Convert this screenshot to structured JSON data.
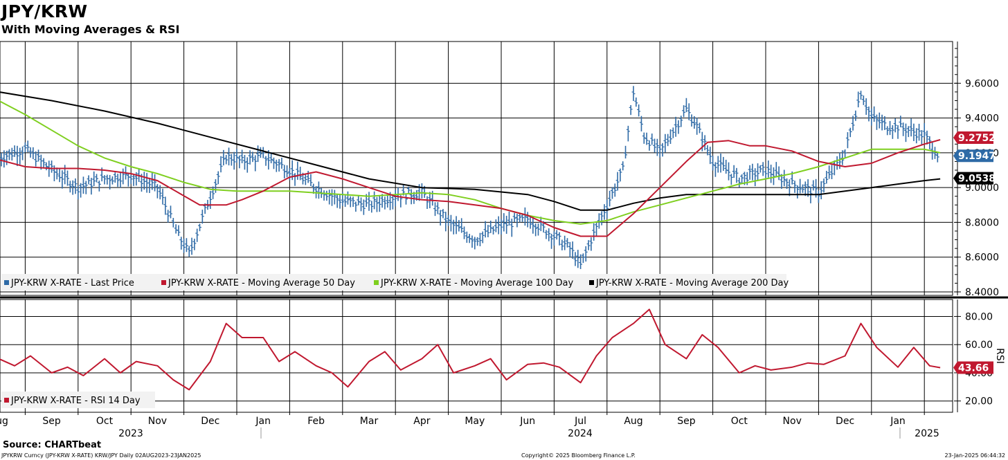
{
  "title": "JPY/KRW",
  "subtitle": "With Moving Averages & RSI",
  "source": "Source: CHARTbeat",
  "footer": {
    "left": "JPYKRW Curncy (JPY-KRW X-RATE) KRW/JPY  Daily 02AUG2023-23JAN2025",
    "center": "Copyright© 2025 Bloomberg Finance L.P.",
    "right": "23-Jan-2025 06:44:32"
  },
  "chart_data": [
    {
      "type": "line",
      "panel": "price",
      "ylim": [
        8.38,
        9.84
      ],
      "yticks": [
        "9.6000",
        "9.4000",
        "9.2000",
        "9.0000",
        "8.8000",
        "8.6000",
        "8.4000"
      ],
      "ytick_values": [
        9.6,
        9.4,
        9.2,
        9.0,
        8.8,
        8.6,
        8.4
      ],
      "x_months": [
        "Aug",
        "Sep",
        "Oct",
        "Nov",
        "Dec",
        "Jan",
        "Feb",
        "Mar",
        "Apr",
        "May",
        "Jun",
        "Jul",
        "Aug",
        "Sep",
        "Oct",
        "Nov",
        "Dec",
        "Jan"
      ],
      "x_years": [
        "2023",
        "2024",
        "2025"
      ],
      "x_range_months": [
        0,
        18
      ],
      "legend": [
        {
          "label": "JPY-KRW X-RATE - Last Price",
          "color": "#2e6aa6"
        },
        {
          "label": "JPY-KRW X-RATE - Moving Average 50 Day",
          "color": "#c0182f"
        },
        {
          "label": "JPY-KRW X-RATE - Moving Average 100 Day",
          "color": "#7fcf1f"
        },
        {
          "label": "JPY-KRW X-RATE - Moving Average 200 Day",
          "color": "#000000"
        }
      ],
      "series": [
        {
          "name": "Last Price",
          "style": "bars",
          "color": "#2e6aa6",
          "x": [
            0.0,
            0.5,
            1.0,
            1.5,
            2.0,
            2.5,
            3.0,
            3.4,
            3.6,
            3.8,
            4.0,
            4.3,
            4.6,
            5.0,
            5.5,
            6.0,
            6.5,
            7.0,
            7.5,
            8.0,
            8.5,
            9.0,
            9.5,
            10.0,
            10.5,
            10.8,
            11.0,
            11.2,
            11.5,
            11.8,
            12.0,
            12.2,
            12.5,
            13.0,
            13.2,
            13.5,
            14.0,
            14.5,
            15.0,
            15.5,
            16.0,
            16.3,
            16.5,
            16.8,
            17.0,
            17.5,
            17.75
          ],
          "y": [
            9.17,
            9.22,
            9.1,
            9.0,
            9.05,
            9.07,
            9.0,
            8.72,
            8.62,
            8.78,
            8.95,
            9.18,
            9.15,
            9.18,
            9.1,
            9.0,
            8.92,
            8.9,
            8.95,
            8.97,
            8.8,
            8.7,
            8.78,
            8.82,
            8.72,
            8.65,
            8.55,
            8.7,
            8.9,
            9.1,
            9.55,
            9.3,
            9.2,
            9.45,
            9.35,
            9.15,
            9.05,
            9.1,
            9.02,
            8.97,
            9.2,
            9.55,
            9.4,
            9.35,
            9.35,
            9.3,
            9.19
          ]
        },
        {
          "name": "Moving Average 50 Day",
          "color": "#c0182f",
          "x": [
            0.0,
            0.5,
            1.0,
            1.5,
            2.0,
            2.5,
            3.0,
            3.4,
            3.8,
            4.3,
            4.6,
            5.0,
            5.5,
            6.0,
            6.5,
            7.0,
            7.5,
            8.0,
            8.5,
            9.0,
            9.5,
            10.0,
            10.5,
            11.0,
            11.5,
            12.0,
            12.5,
            13.0,
            13.4,
            13.8,
            14.2,
            14.5,
            15.0,
            15.5,
            16.0,
            16.5,
            17.0,
            17.5,
            17.8
          ],
          "y": [
            9.16,
            9.12,
            9.11,
            9.11,
            9.1,
            9.08,
            9.04,
            8.97,
            8.9,
            8.9,
            8.93,
            8.98,
            9.06,
            9.09,
            9.05,
            9.0,
            8.95,
            8.93,
            8.92,
            8.9,
            8.88,
            8.84,
            8.77,
            8.72,
            8.72,
            8.85,
            9.0,
            9.15,
            9.26,
            9.27,
            9.24,
            9.24,
            9.21,
            9.15,
            9.12,
            9.14,
            9.2,
            9.25,
            9.275
          ]
        },
        {
          "name": "Moving Average 100 Day",
          "color": "#7fcf1f",
          "x": [
            0.0,
            0.5,
            1.0,
            1.5,
            2.0,
            2.5,
            3.0,
            3.5,
            4.0,
            4.5,
            5.0,
            5.5,
            6.0,
            6.5,
            7.0,
            7.5,
            8.0,
            8.5,
            9.0,
            9.5,
            10.0,
            10.5,
            11.0,
            11.5,
            12.0,
            12.5,
            13.0,
            13.5,
            14.0,
            14.5,
            15.0,
            15.5,
            16.0,
            16.5,
            17.0,
            17.5,
            17.8
          ],
          "y": [
            9.5,
            9.42,
            9.33,
            9.24,
            9.17,
            9.12,
            9.08,
            9.03,
            8.99,
            8.98,
            8.98,
            8.98,
            8.97,
            8.96,
            8.95,
            8.96,
            8.97,
            8.96,
            8.93,
            8.88,
            8.84,
            8.81,
            8.79,
            8.81,
            8.86,
            8.9,
            8.94,
            8.98,
            9.02,
            9.05,
            9.08,
            9.12,
            9.17,
            9.22,
            9.22,
            9.22,
            9.2
          ]
        },
        {
          "name": "Moving Average 200 Day",
          "color": "#000000",
          "x": [
            0.0,
            1.0,
            2.0,
            3.0,
            4.0,
            5.0,
            6.0,
            7.0,
            8.0,
            9.0,
            10.0,
            10.5,
            11.0,
            11.5,
            12.0,
            12.5,
            13.0,
            13.5,
            14.0,
            14.5,
            15.0,
            15.5,
            16.0,
            16.5,
            17.0,
            17.5,
            17.8
          ],
          "y": [
            9.55,
            9.5,
            9.44,
            9.37,
            9.29,
            9.21,
            9.13,
            9.05,
            9.0,
            8.99,
            8.96,
            8.92,
            8.87,
            8.87,
            8.91,
            8.94,
            8.96,
            8.96,
            8.96,
            8.96,
            8.96,
            8.96,
            8.98,
            9.0,
            9.02,
            9.04,
            9.05
          ]
        }
      ],
      "last_values": [
        {
          "label": "9.2752",
          "color": "#c0182f"
        },
        {
          "label": "9.1947",
          "color": "#2e6aa6"
        },
        {
          "label": "9.0538",
          "color": "#000000"
        }
      ]
    },
    {
      "type": "line",
      "panel": "rsi",
      "ylabel": "RSI",
      "ylim": [
        12,
        92
      ],
      "yticks": [
        "80.00",
        "60.00",
        "40.00",
        "20.00"
      ],
      "ytick_values": [
        80,
        60,
        40,
        20
      ],
      "legend": [
        {
          "label": "JPY-KRW X-RATE - RSI 14 Day",
          "color": "#c0182f"
        }
      ],
      "series": [
        {
          "name": "RSI 14 Day",
          "color": "#c0182f",
          "x": [
            0.0,
            0.3,
            0.6,
            1.0,
            1.3,
            1.6,
            2.0,
            2.3,
            2.6,
            3.0,
            3.3,
            3.6,
            4.0,
            4.3,
            4.6,
            5.0,
            5.3,
            5.6,
            6.0,
            6.3,
            6.6,
            7.0,
            7.3,
            7.6,
            8.0,
            8.3,
            8.6,
            9.0,
            9.3,
            9.6,
            10.0,
            10.3,
            10.6,
            11.0,
            11.3,
            11.6,
            12.0,
            12.3,
            12.6,
            13.0,
            13.3,
            13.6,
            14.0,
            14.3,
            14.6,
            15.0,
            15.3,
            15.6,
            16.0,
            16.3,
            16.6,
            17.0,
            17.3,
            17.6,
            17.8
          ],
          "y": [
            50,
            45,
            52,
            40,
            44,
            38,
            50,
            40,
            48,
            45,
            35,
            28,
            48,
            75,
            65,
            65,
            48,
            55,
            45,
            40,
            30,
            48,
            55,
            42,
            50,
            60,
            40,
            45,
            50,
            35,
            46,
            47,
            44,
            33,
            52,
            65,
            75,
            85,
            60,
            50,
            67,
            58,
            40,
            45,
            42,
            44,
            47,
            46,
            52,
            75,
            58,
            44,
            58,
            45,
            43.66
          ]
        }
      ],
      "last_values": [
        {
          "label": "43.66",
          "color": "#c0182f"
        }
      ]
    }
  ]
}
